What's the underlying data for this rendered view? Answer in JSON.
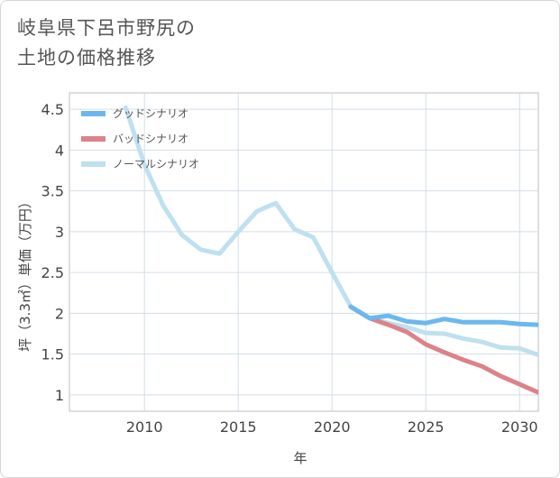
{
  "title": {
    "line1": "岐阜県下呂市野尻の",
    "line2": "土地の価格推移"
  },
  "chart_data": {
    "type": "line",
    "title": "岐阜県下呂市野尻の土地の価格推移",
    "xlabel": "年",
    "ylabel": "坪（3.3㎡）単価（万円）",
    "xlim": [
      2006,
      2031
    ],
    "ylim": [
      0.8,
      4.7
    ],
    "xticks": [
      2010,
      2015,
      2020,
      2025,
      2030
    ],
    "yticks": [
      1,
      1.5,
      2,
      2.5,
      3,
      3.5,
      4,
      4.5
    ],
    "ytick_labels": [
      "1",
      "1.5",
      "2",
      "2.5",
      "3",
      "3.5",
      "4",
      "4.5"
    ],
    "grid": true,
    "legend_position": "top-left",
    "series": [
      {
        "name": "グッドシナリオ",
        "color": "#6bb8ee",
        "x": [
          2021,
          2022,
          2023,
          2024,
          2025,
          2026,
          2027,
          2028,
          2029,
          2030,
          2031
        ],
        "y": [
          2.08,
          1.94,
          1.97,
          1.9,
          1.88,
          1.93,
          1.89,
          1.89,
          1.89,
          1.87,
          1.86
        ]
      },
      {
        "name": "バッドシナリオ",
        "color": "#dd8289",
        "x": [
          2021,
          2022,
          2023,
          2024,
          2025,
          2026,
          2027,
          2028,
          2029,
          2030,
          2031
        ],
        "y": [
          2.08,
          1.94,
          1.86,
          1.77,
          1.62,
          1.52,
          1.43,
          1.35,
          1.23,
          1.13,
          1.03
        ]
      },
      {
        "name": "ノーマルシナリオ",
        "color": "#bfe0ef",
        "x": [
          2009,
          2010,
          2011,
          2012,
          2013,
          2014,
          2015,
          2016,
          2017,
          2018,
          2019,
          2020,
          2021,
          2022,
          2023,
          2024,
          2025,
          2026,
          2027,
          2028,
          2029,
          2030,
          2031
        ],
        "y": [
          4.52,
          3.82,
          3.32,
          2.96,
          2.78,
          2.73,
          3.0,
          3.25,
          3.35,
          3.03,
          2.93,
          2.5,
          2.08,
          1.94,
          1.88,
          1.83,
          1.76,
          1.75,
          1.69,
          1.65,
          1.58,
          1.57,
          1.49
        ]
      }
    ]
  }
}
